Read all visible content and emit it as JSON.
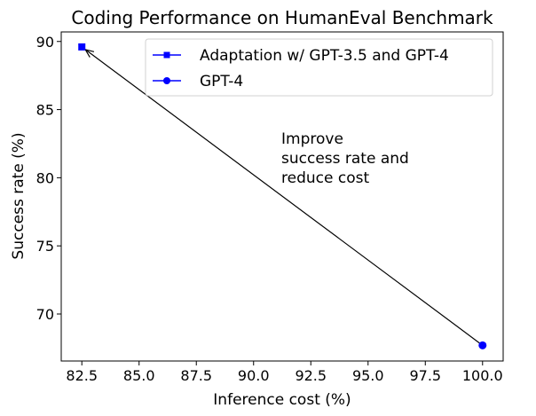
{
  "chart_data": {
    "type": "scatter",
    "title": "Coding Performance on HumanEval Benchmark",
    "xlabel": "Inference cost (%)",
    "ylabel": "Success rate (%)",
    "xlim": [
      81.6,
      100.9
    ],
    "ylim": [
      66.55,
      90.7
    ],
    "xticks": [
      "82.5",
      "85.0",
      "87.5",
      "90.0",
      "92.5",
      "95.0",
      "97.5",
      "100.0"
    ],
    "yticks": [
      "70",
      "75",
      "80",
      "85",
      "90"
    ],
    "grid": false,
    "legend_position": "top-right",
    "series": [
      {
        "name": "Adaptation w/ GPT-3.5 and GPT-4",
        "marker": "square",
        "color": "#0000ff",
        "x": [
          82.5
        ],
        "y": [
          89.6
        ]
      },
      {
        "name": "GPT-4",
        "marker": "circle",
        "color": "#0000ff",
        "x": [
          100.0
        ],
        "y": [
          67.7
        ]
      }
    ],
    "annotation": {
      "lines": [
        "Improve",
        "success rate and",
        "reduce cost"
      ],
      "arrow_from": [
        100.0,
        67.7
      ],
      "arrow_to": [
        82.5,
        89.6
      ]
    }
  }
}
